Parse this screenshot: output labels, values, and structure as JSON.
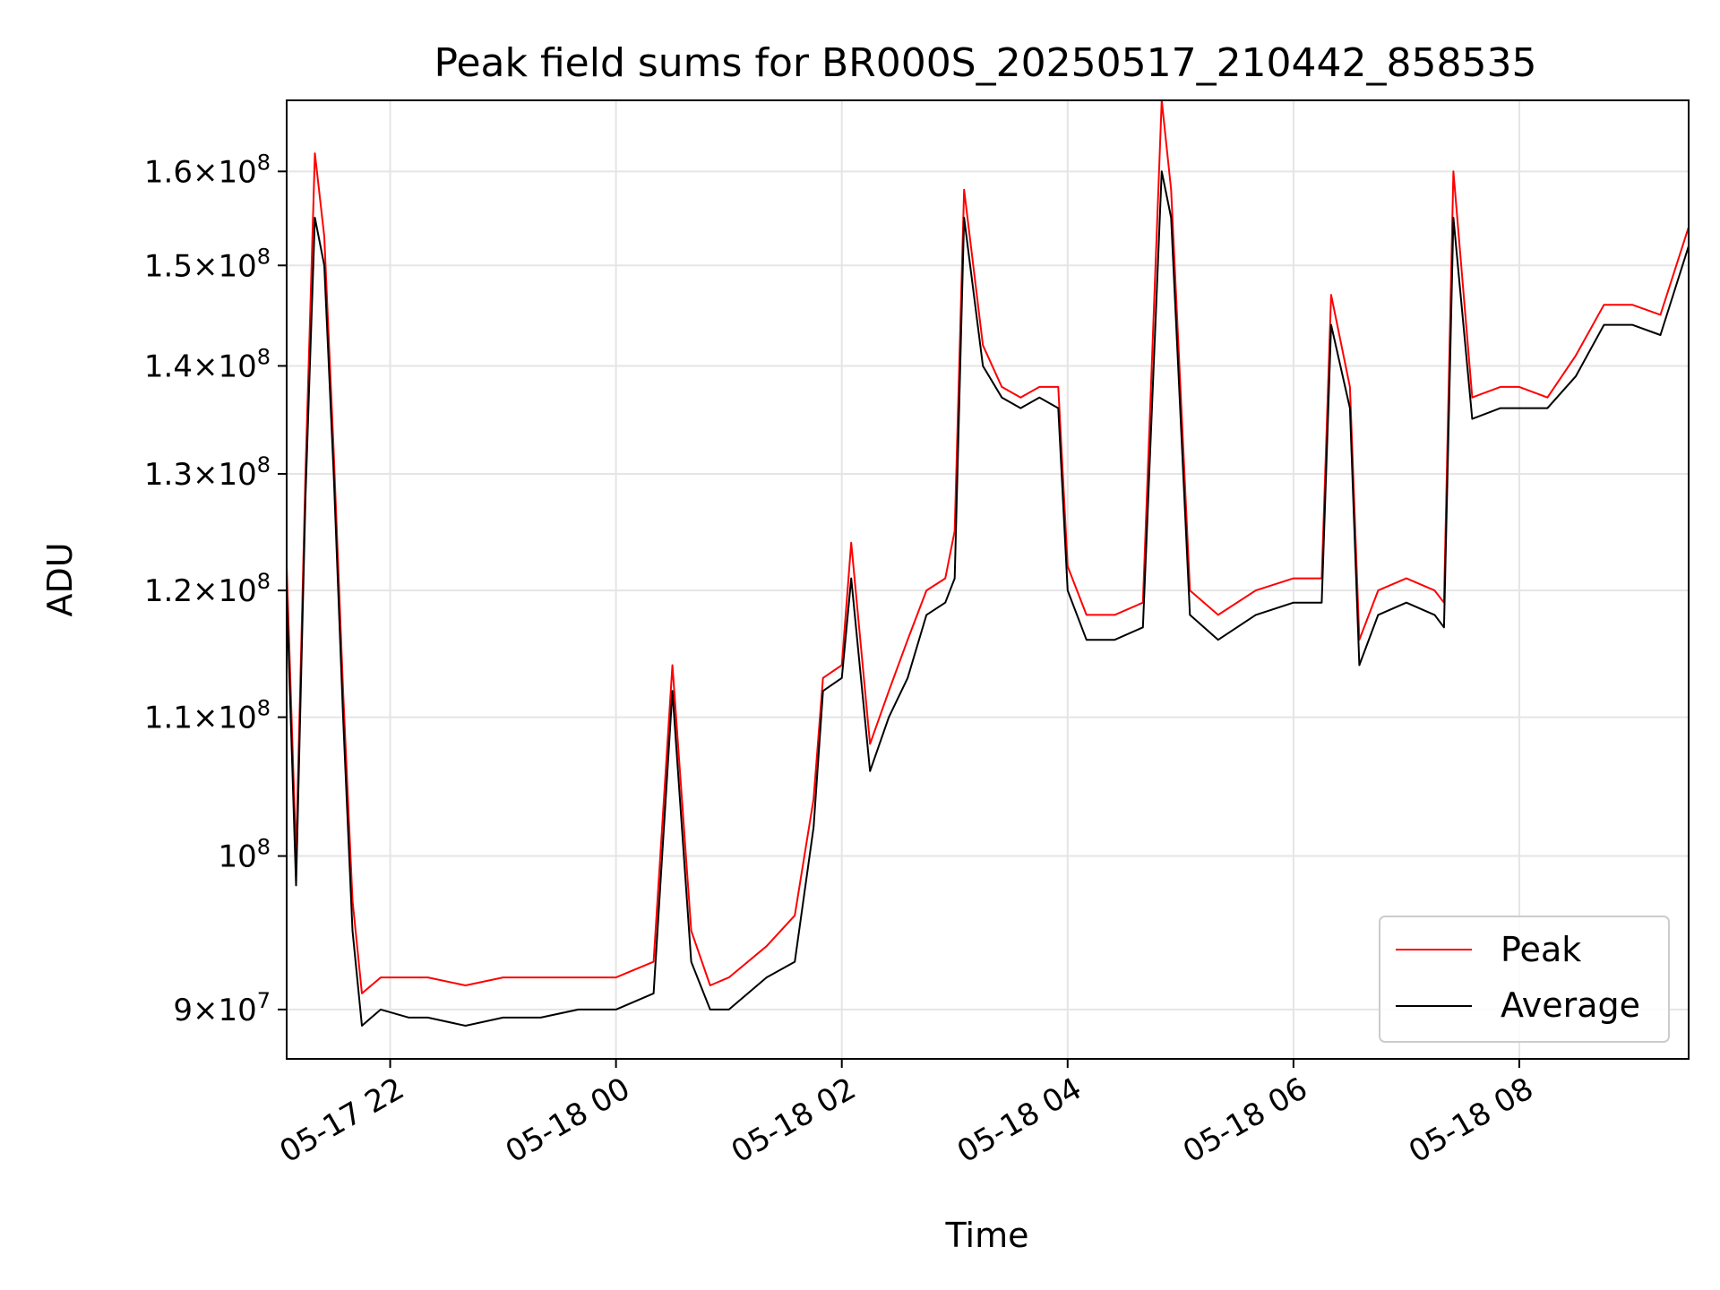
{
  "chart_data": {
    "type": "line",
    "title": "Peak field sums for BR000S_20250517_210442_858535",
    "xlabel": "Time",
    "ylabel": "ADU",
    "y_scale": "log",
    "xlim": [
      "2025-05-17 21:05",
      "2025-05-18 09:30"
    ],
    "ylim": [
      87000000,
      168000000
    ],
    "grid": true,
    "legend_position": "lower right",
    "x_ticks": [
      {
        "value": "2025-05-17 22:00",
        "label": "05-17 22"
      },
      {
        "value": "2025-05-18 00:00",
        "label": "05-18 00"
      },
      {
        "value": "2025-05-18 02:00",
        "label": "05-18 02"
      },
      {
        "value": "2025-05-18 04:00",
        "label": "05-18 04"
      },
      {
        "value": "2025-05-18 06:00",
        "label": "05-18 06"
      },
      {
        "value": "2025-05-18 08:00",
        "label": "05-18 08"
      }
    ],
    "y_ticks": [
      {
        "value": 90000000,
        "mantissa": "9",
        "exponent": "7"
      },
      {
        "value": 100000000,
        "mantissa": "",
        "exponent": "8"
      },
      {
        "value": 110000000,
        "mantissa": "1.1",
        "exponent": "8"
      },
      {
        "value": 120000000,
        "mantissa": "1.2",
        "exponent": "8"
      },
      {
        "value": 130000000,
        "mantissa": "1.3",
        "exponent": "8"
      },
      {
        "value": 140000000,
        "mantissa": "1.4",
        "exponent": "8"
      },
      {
        "value": 150000000,
        "mantissa": "1.5",
        "exponent": "8"
      },
      {
        "value": 160000000,
        "mantissa": "1.6",
        "exponent": "8"
      }
    ],
    "series": [
      {
        "name": "Peak",
        "color": "#ff0000",
        "x": [
          "2025-05-17 21:05",
          "2025-05-17 21:10",
          "2025-05-17 21:15",
          "2025-05-17 21:20",
          "2025-05-17 21:25",
          "2025-05-17 21:30",
          "2025-05-17 21:35",
          "2025-05-17 21:40",
          "2025-05-17 21:45",
          "2025-05-17 21:50",
          "2025-05-17 21:55",
          "2025-05-17 22:10",
          "2025-05-17 22:20",
          "2025-05-17 22:40",
          "2025-05-17 23:00",
          "2025-05-17 23:20",
          "2025-05-17 23:40",
          "2025-05-18 00:00",
          "2025-05-18 00:20",
          "2025-05-18 00:30",
          "2025-05-18 00:40",
          "2025-05-18 00:50",
          "2025-05-18 01:00",
          "2025-05-18 01:20",
          "2025-05-18 01:35",
          "2025-05-18 01:45",
          "2025-05-18 01:50",
          "2025-05-18 02:00",
          "2025-05-18 02:05",
          "2025-05-18 02:15",
          "2025-05-18 02:25",
          "2025-05-18 02:35",
          "2025-05-18 02:45",
          "2025-05-18 02:55",
          "2025-05-18 03:00",
          "2025-05-18 03:05",
          "2025-05-18 03:15",
          "2025-05-18 03:25",
          "2025-05-18 03:35",
          "2025-05-18 03:45",
          "2025-05-18 03:55",
          "2025-05-18 04:00",
          "2025-05-18 04:10",
          "2025-05-18 04:25",
          "2025-05-18 04:40",
          "2025-05-18 04:50",
          "2025-05-18 04:55",
          "2025-05-18 05:05",
          "2025-05-18 05:20",
          "2025-05-18 05:40",
          "2025-05-18 06:00",
          "2025-05-18 06:15",
          "2025-05-18 06:20",
          "2025-05-18 06:30",
          "2025-05-18 06:35",
          "2025-05-18 06:45",
          "2025-05-18 07:00",
          "2025-05-18 07:15",
          "2025-05-18 07:20",
          "2025-05-18 07:25",
          "2025-05-18 07:35",
          "2025-05-18 07:50",
          "2025-05-18 08:00",
          "2025-05-18 08:15",
          "2025-05-18 08:30",
          "2025-05-18 08:45",
          "2025-05-18 09:00",
          "2025-05-18 09:15",
          "2025-05-18 09:30"
        ],
        "y": [
          122000000,
          100000000,
          130000000,
          162000000,
          153000000,
          132000000,
          112000000,
          97000000,
          91000000,
          91500000,
          92000000,
          92000000,
          92000000,
          91500000,
          92000000,
          92000000,
          92000000,
          92000000,
          93000000,
          114000000,
          95000000,
          91500000,
          92000000,
          94000000,
          96000000,
          104000000,
          113000000,
          114000000,
          124000000,
          108000000,
          112000000,
          116000000,
          120000000,
          121000000,
          125000000,
          158000000,
          142000000,
          138000000,
          137000000,
          138000000,
          138000000,
          122000000,
          118000000,
          118000000,
          119000000,
          168000000,
          158000000,
          120000000,
          118000000,
          120000000,
          121000000,
          121000000,
          147000000,
          138000000,
          116000000,
          120000000,
          121000000,
          120000000,
          119000000,
          160000000,
          137000000,
          138000000,
          138000000,
          137000000,
          141000000,
          146000000,
          146000000,
          145000000,
          154000000
        ]
      },
      {
        "name": "Average",
        "color": "#000000",
        "x": [
          "2025-05-17 21:05",
          "2025-05-17 21:10",
          "2025-05-17 21:15",
          "2025-05-17 21:20",
          "2025-05-17 21:25",
          "2025-05-17 21:30",
          "2025-05-17 21:35",
          "2025-05-17 21:40",
          "2025-05-17 21:45",
          "2025-05-17 21:50",
          "2025-05-17 21:55",
          "2025-05-17 22:10",
          "2025-05-17 22:20",
          "2025-05-17 22:40",
          "2025-05-17 23:00",
          "2025-05-17 23:20",
          "2025-05-17 23:40",
          "2025-05-18 00:00",
          "2025-05-18 00:20",
          "2025-05-18 00:30",
          "2025-05-18 00:40",
          "2025-05-18 00:50",
          "2025-05-18 01:00",
          "2025-05-18 01:20",
          "2025-05-18 01:35",
          "2025-05-18 01:45",
          "2025-05-18 01:50",
          "2025-05-18 02:00",
          "2025-05-18 02:05",
          "2025-05-18 02:15",
          "2025-05-18 02:25",
          "2025-05-18 02:35",
          "2025-05-18 02:45",
          "2025-05-18 02:55",
          "2025-05-18 03:00",
          "2025-05-18 03:05",
          "2025-05-18 03:15",
          "2025-05-18 03:25",
          "2025-05-18 03:35",
          "2025-05-18 03:45",
          "2025-05-18 03:55",
          "2025-05-18 04:00",
          "2025-05-18 04:10",
          "2025-05-18 04:25",
          "2025-05-18 04:40",
          "2025-05-18 04:50",
          "2025-05-18 04:55",
          "2025-05-18 05:05",
          "2025-05-18 05:20",
          "2025-05-18 05:40",
          "2025-05-18 06:00",
          "2025-05-18 06:15",
          "2025-05-18 06:20",
          "2025-05-18 06:30",
          "2025-05-18 06:35",
          "2025-05-18 06:45",
          "2025-05-18 07:00",
          "2025-05-18 07:15",
          "2025-05-18 07:20",
          "2025-05-18 07:25",
          "2025-05-18 07:35",
          "2025-05-18 07:50",
          "2025-05-18 08:00",
          "2025-05-18 08:15",
          "2025-05-18 08:30",
          "2025-05-18 08:45",
          "2025-05-18 09:00",
          "2025-05-18 09:15",
          "2025-05-18 09:30"
        ],
        "y": [
          120000000,
          98000000,
          128000000,
          155000000,
          150000000,
          130000000,
          110000000,
          95000000,
          89000000,
          89500000,
          90000000,
          89500000,
          89500000,
          89000000,
          89500000,
          89500000,
          90000000,
          90000000,
          91000000,
          112000000,
          93000000,
          90000000,
          90000000,
          92000000,
          93000000,
          102000000,
          112000000,
          113000000,
          121000000,
          106000000,
          110000000,
          113000000,
          118000000,
          119000000,
          121000000,
          155000000,
          140000000,
          137000000,
          136000000,
          137000000,
          136000000,
          120000000,
          116000000,
          116000000,
          117000000,
          160000000,
          155000000,
          118000000,
          116000000,
          118000000,
          119000000,
          119000000,
          144000000,
          136000000,
          114000000,
          118000000,
          119000000,
          118000000,
          117000000,
          155000000,
          135000000,
          136000000,
          136000000,
          136000000,
          139000000,
          144000000,
          144000000,
          143000000,
          152000000
        ]
      }
    ]
  }
}
